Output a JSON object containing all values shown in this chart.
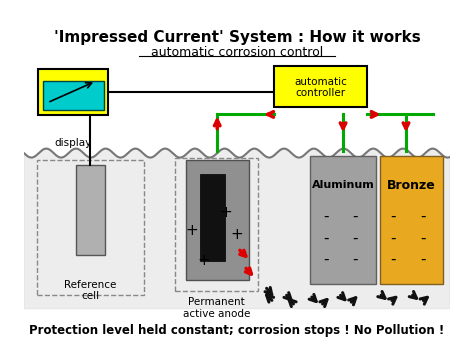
{
  "title": "'Impressed Current' System : How it works",
  "subtitle": "automatic corrosion control",
  "bottom_text": "Protection level held constant; corrosion stops ! No Pollution !",
  "bg_color": "#ffffff",
  "display_box_color": "#ffff00",
  "display_screen_color": "#00cccc",
  "controller_box_color": "#ffff00",
  "ref_box_color": "#b0b0b0",
  "aluminum_color": "#a0a0a0",
  "bronze_color": "#e8a820",
  "black_core_color": "#111111",
  "dashed_border_color": "#888888",
  "green_wire_color": "#00aa00",
  "red_arrow_color": "#dd0000",
  "black_arrow_color": "#111111",
  "anode_gray": "#909090"
}
